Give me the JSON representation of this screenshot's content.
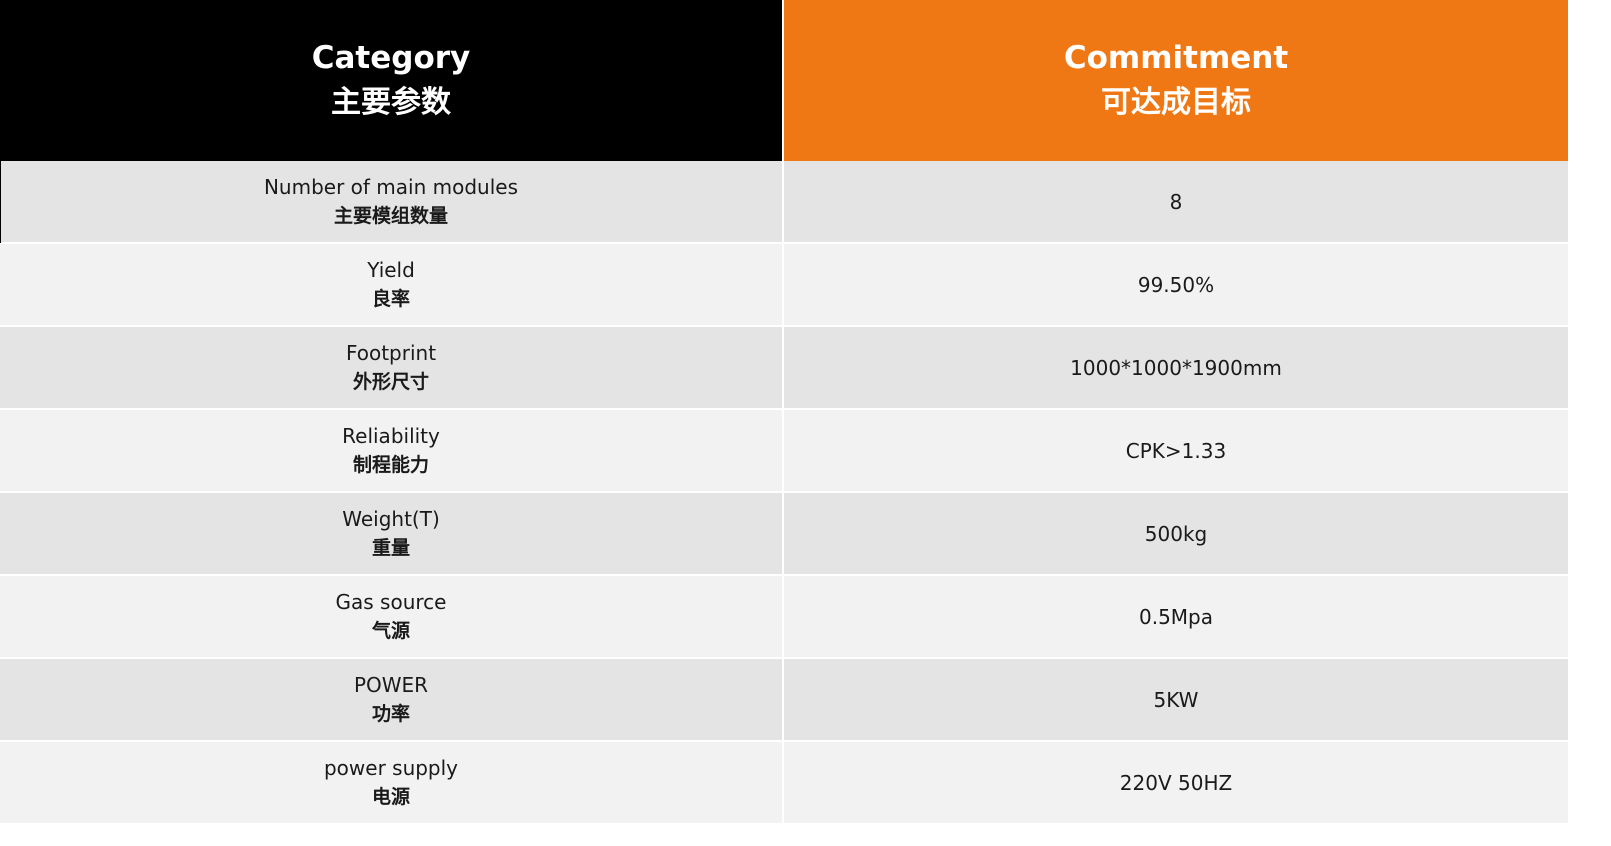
{
  "header": {
    "left_en": "Category",
    "left_zh": "主要参数",
    "right_en": "Commitment",
    "right_zh": "可达成目标"
  },
  "rows": [
    {
      "label_en": "Number of main modules",
      "label_zh": "主要模组数量",
      "value": "8"
    },
    {
      "label_en": "Yield",
      "label_zh": "良率",
      "value": "99.50%"
    },
    {
      "label_en": "Footprint",
      "label_zh": "外形尺寸",
      "value": "1000*1000*1900mm"
    },
    {
      "label_en": "Reliability",
      "label_zh": "制程能力",
      "value": "CPK>1.33"
    },
    {
      "label_en": "Weight(T)",
      "label_zh": "重量",
      "value": "500kg"
    },
    {
      "label_en": "Gas source",
      "label_zh": "气源",
      "value": "0.5Mpa"
    },
    {
      "label_en": "POWER",
      "label_zh": "功率",
      "value": "5KW"
    },
    {
      "label_en": "power supply",
      "label_zh": "电源",
      "value": "220V 50HZ"
    }
  ],
  "colors": {
    "left_header_bg": "#000000",
    "right_header_bg": "#f07814",
    "row_shade_a": "#e4e4e4",
    "row_shade_b": "#f2f2f2"
  }
}
